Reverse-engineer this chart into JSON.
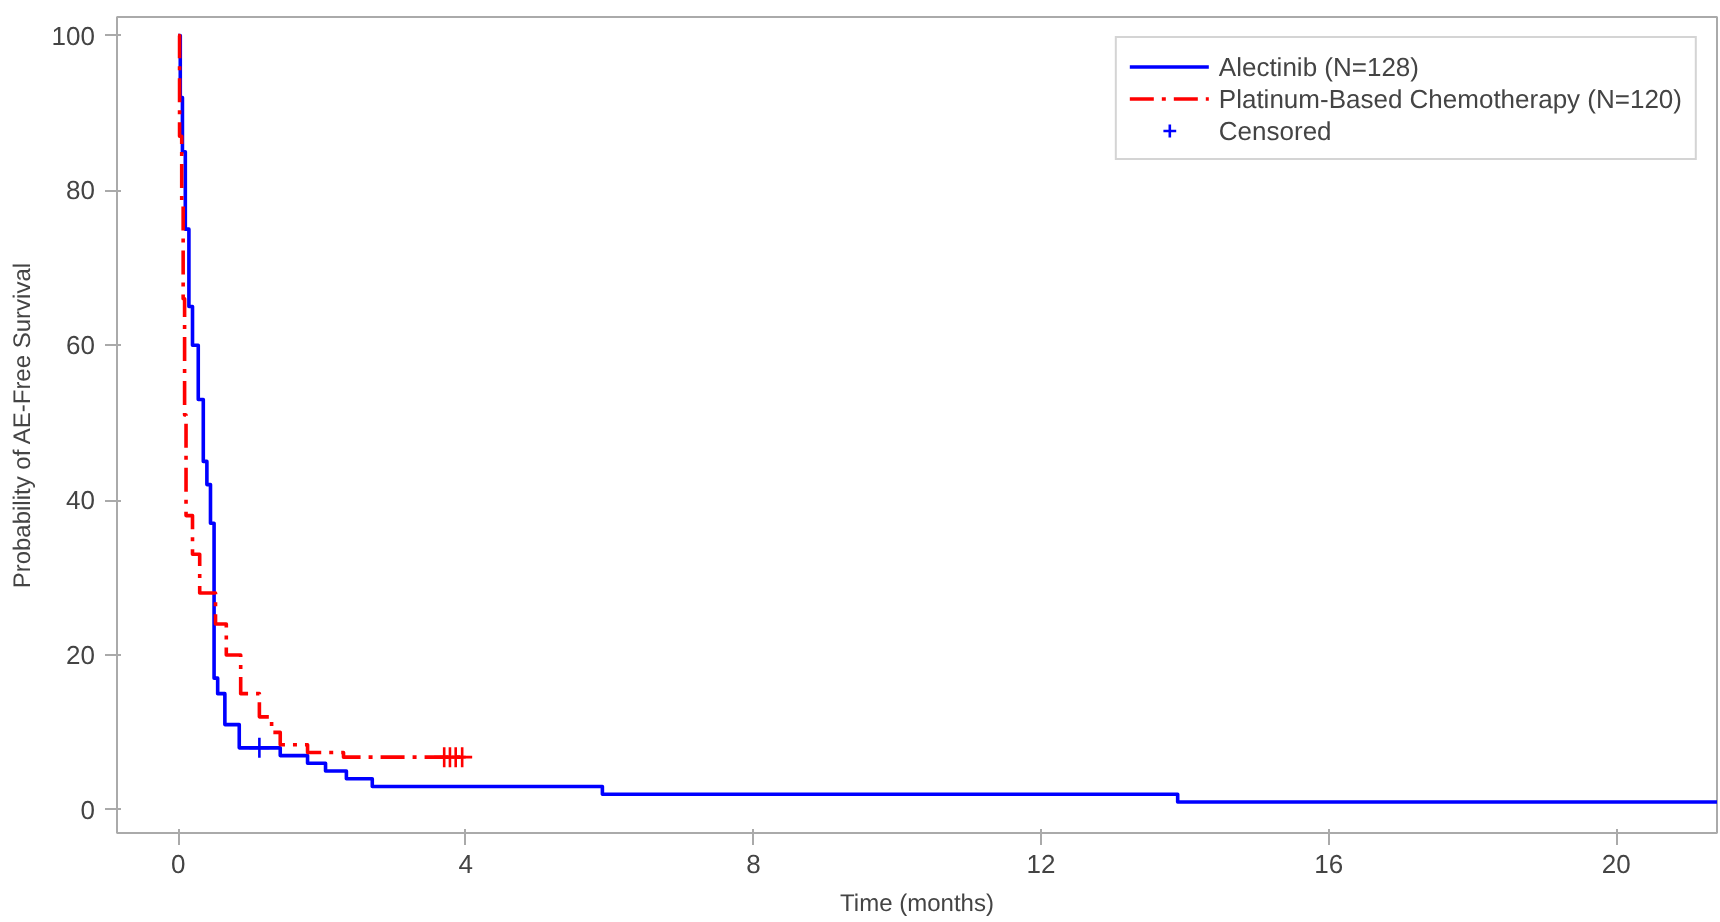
{
  "chart_data": {
    "type": "step",
    "xlabel": "Time (months)",
    "ylabel": "Probability of AE-Free Survival",
    "xlim": [
      -0.85,
      21.4
    ],
    "ylim": [
      -3,
      102.4
    ],
    "xticks": [
      0,
      4,
      8,
      12,
      16,
      20
    ],
    "yticks": [
      0,
      20,
      40,
      60,
      80,
      100
    ],
    "grid": false,
    "legend": "top right",
    "series": [
      {
        "name": "Alectinib (N=128)",
        "color": "#0000ff",
        "line_style": "solid",
        "x": [
          0,
          0.03,
          0.06,
          0.1,
          0.15,
          0.2,
          0.28,
          0.35,
          0.4,
          0.45,
          0.5,
          0.55,
          0.65,
          0.85,
          1.42,
          1.8,
          2.05,
          2.34,
          2.7,
          5.9,
          13.9,
          21.4
        ],
        "values": [
          100,
          92,
          85,
          75,
          65,
          60,
          53,
          45,
          42,
          37,
          17,
          15,
          11,
          8,
          7,
          6,
          5,
          4,
          3,
          2,
          1,
          1
        ]
      },
      {
        "name": "Platinum-Based Chemotherapy (N=120)",
        "color": "#ff0000",
        "line_style": "dashed",
        "x": [
          0,
          0.02,
          0.05,
          0.07,
          0.09,
          0.11,
          0.2,
          0.3,
          0.52,
          0.67,
          0.87,
          1.13,
          1.3,
          1.42,
          1.8,
          2.3,
          4.0
        ],
        "values": [
          100,
          87,
          78,
          66,
          51,
          38,
          33,
          28,
          24,
          20,
          15,
          12,
          10,
          8.4,
          7.4,
          6.8,
          6.8
        ]
      },
      {
        "name": "Censored",
        "type": "scatter",
        "marker": "cross",
        "color": "#0000ff",
        "colors": [
          "#0000ff",
          "#ff0000",
          "#ff0000",
          "#ff0000",
          "#ff0000"
        ],
        "x": [
          1.13,
          3.7,
          3.78,
          3.86,
          3.95
        ],
        "values": [
          8,
          6.8,
          6.8,
          6.8,
          6.8
        ]
      }
    ]
  }
}
